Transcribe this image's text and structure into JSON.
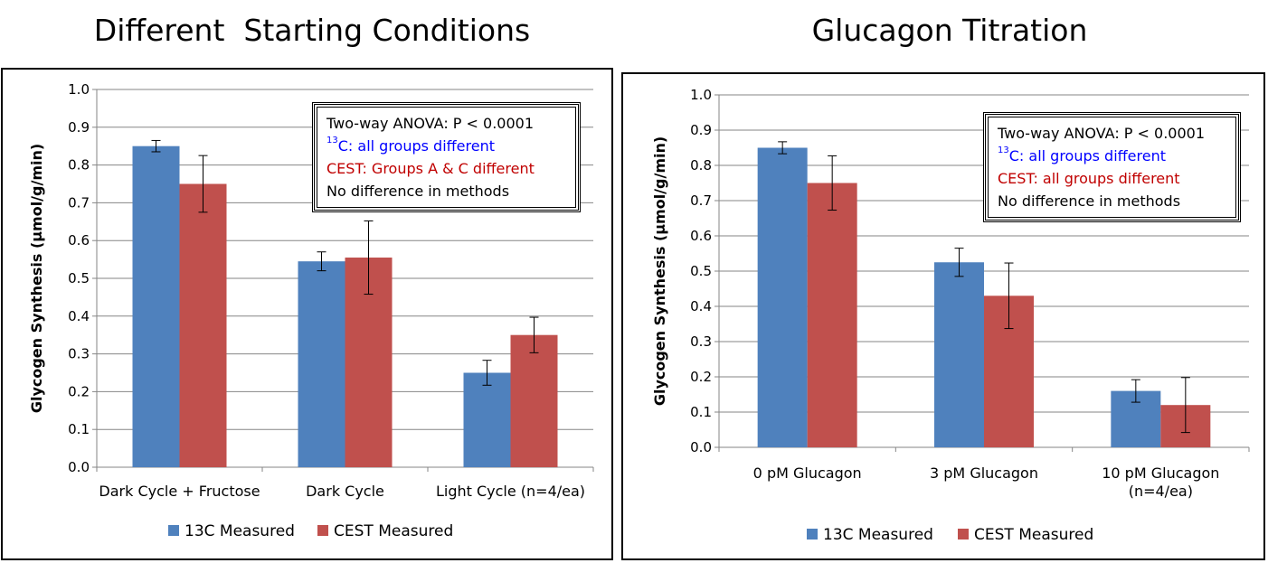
{
  "colors": {
    "c13": "#4F81BD",
    "cest": "#C0504D",
    "blue_text": "#0000FF",
    "red_text": "#C00000",
    "grid": "#868686"
  },
  "chart_data": [
    {
      "type": "bar",
      "title": "Different  Starting Conditions",
      "ylabel": "Glycogen Synthesis (µmol/g/min)",
      "ylim": [
        0,
        1.0
      ],
      "yticks": [
        "0.0",
        "0.1",
        "0.2",
        "0.3",
        "0.4",
        "0.5",
        "0.6",
        "0.7",
        "0.8",
        "0.9",
        "1.0"
      ],
      "categories": [
        "Dark Cycle + Fructose",
        "Dark Cycle",
        "Light Cycle (n=4/ea)"
      ],
      "series": [
        {
          "name": "13C Measured",
          "values": [
            0.85,
            0.545,
            0.25
          ],
          "errors": [
            0.015,
            0.025,
            0.033
          ]
        },
        {
          "name": "CEST Measured",
          "values": [
            0.75,
            0.555,
            0.35
          ],
          "errors": [
            0.075,
            0.097,
            0.047
          ]
        }
      ],
      "annotation": {
        "line1": "Two-way ANOVA: P < 0.0001",
        "line2_sup": "13",
        "line2": "C: all groups different",
        "line3": "CEST: Groups A & C different",
        "line4": "No difference in methods"
      }
    },
    {
      "type": "bar",
      "title": "Glucagon Titration",
      "ylabel": "Glycogen Synthesis (µmol/g/min)",
      "ylim": [
        0,
        1.0
      ],
      "yticks": [
        "0.0",
        "0.1",
        "0.2",
        "0.3",
        "0.4",
        "0.5",
        "0.6",
        "0.7",
        "0.8",
        "0.9",
        "1.0"
      ],
      "categories": [
        "0 pM Glucagon",
        "3 pM Glucagon",
        "10 pM Glucagon"
      ],
      "category_sublabels": [
        "",
        "",
        "(n=4/ea)"
      ],
      "series": [
        {
          "name": "13C Measured",
          "values": [
            0.85,
            0.525,
            0.16
          ],
          "errors": [
            0.017,
            0.04,
            0.032
          ]
        },
        {
          "name": "CEST Measured",
          "values": [
            0.75,
            0.43,
            0.12
          ],
          "errors": [
            0.077,
            0.093,
            0.078
          ]
        }
      ],
      "annotation": {
        "line1": "Two-way ANOVA: P < 0.0001",
        "line2_sup": "13",
        "line2": "C: all groups different",
        "line3": "CEST: all groups different",
        "line4": "No difference in methods"
      }
    }
  ]
}
